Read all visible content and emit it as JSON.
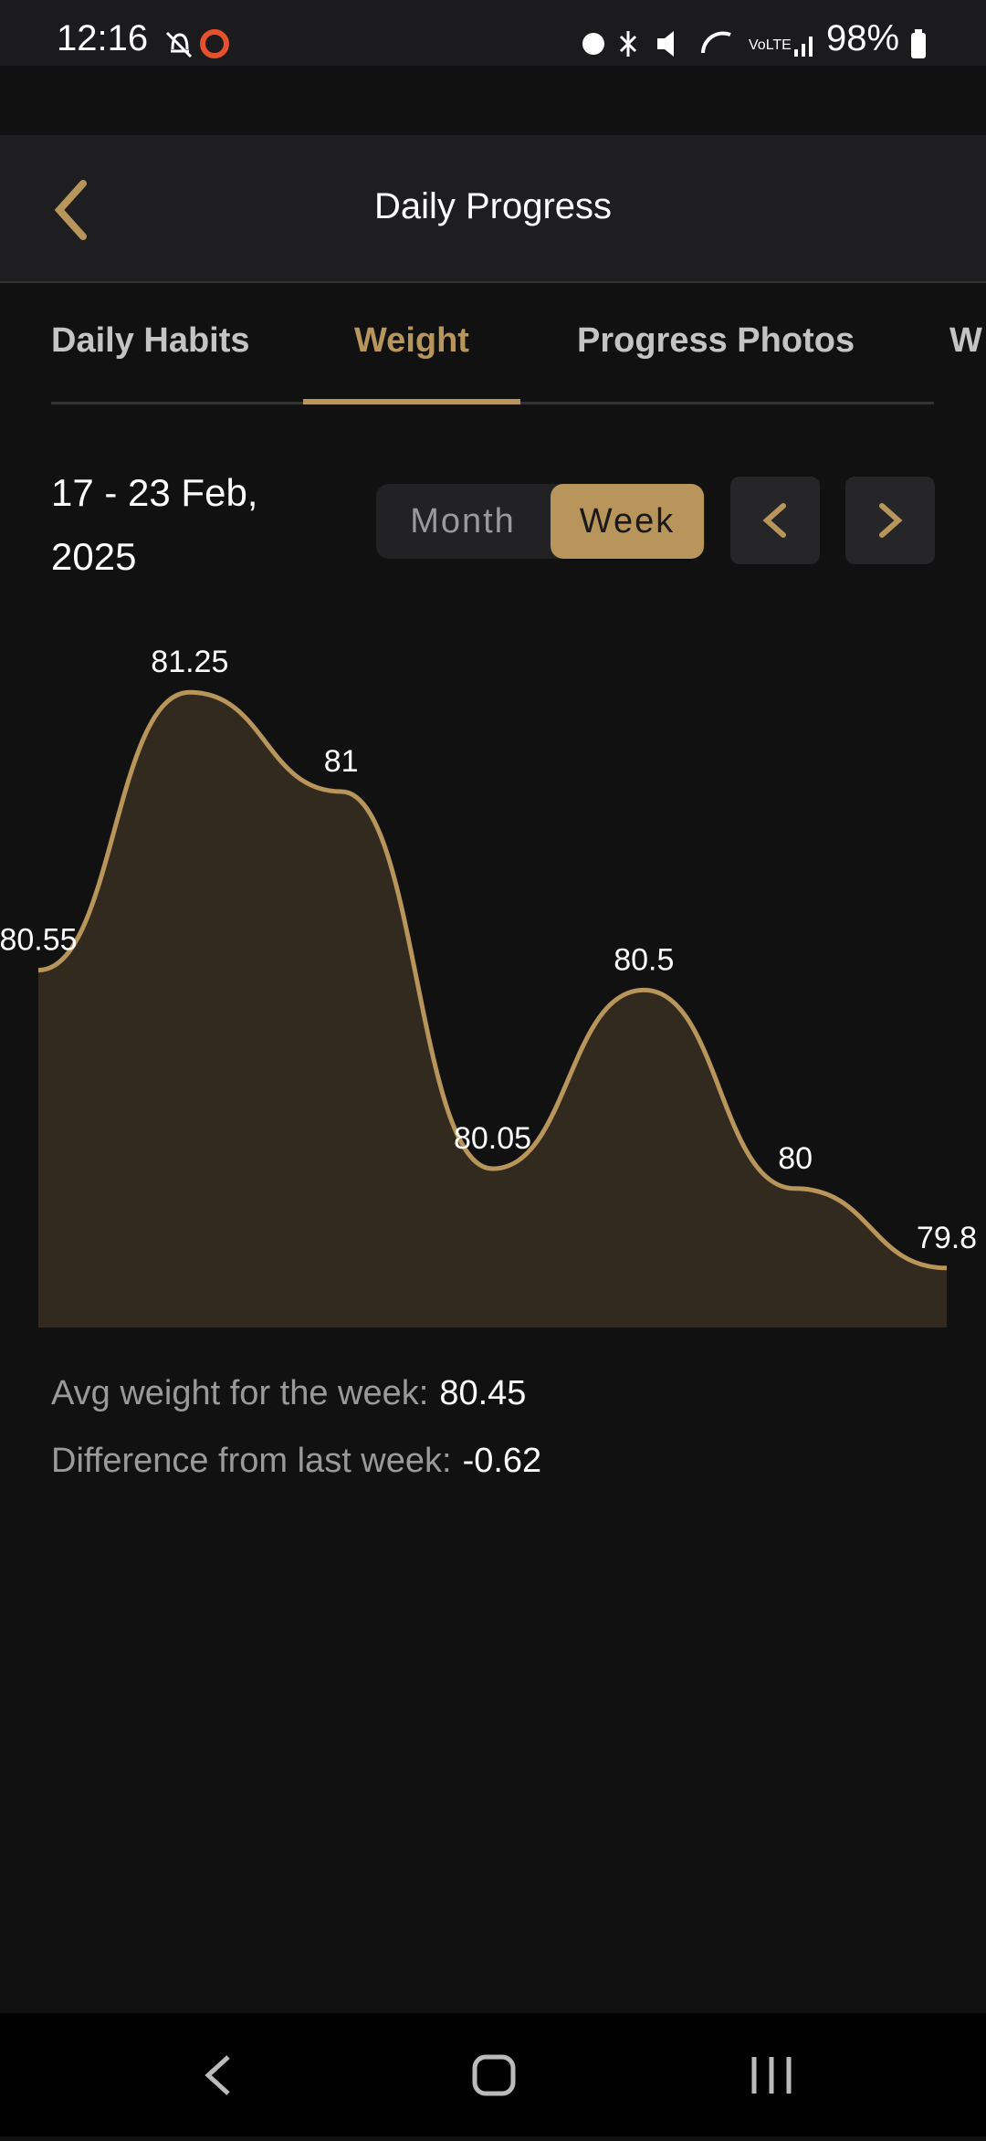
{
  "status_bar": {
    "time": "12:16",
    "battery": "98%"
  },
  "header": {
    "title": "Daily Progress"
  },
  "tabs": {
    "items": [
      "Daily Habits",
      "Weight",
      "Progress Photos",
      "W"
    ],
    "selected": "Weight"
  },
  "date_range": "17 - 23 Feb, 2025",
  "view_toggle": {
    "options": [
      "Month",
      "Week"
    ],
    "selected": "Week"
  },
  "chart_data": {
    "type": "area",
    "values": [
      80.55,
      81.25,
      81,
      80.05,
      80.5,
      80,
      79.8
    ],
    "color": "#b8955a",
    "fill": "#332a1f",
    "ylim": [
      79.65,
      81.4
    ]
  },
  "stats": [
    {
      "label": "Avg weight for the week:",
      "value": 80.45
    },
    {
      "label": "Difference from last week:",
      "value": -0.62
    }
  ]
}
